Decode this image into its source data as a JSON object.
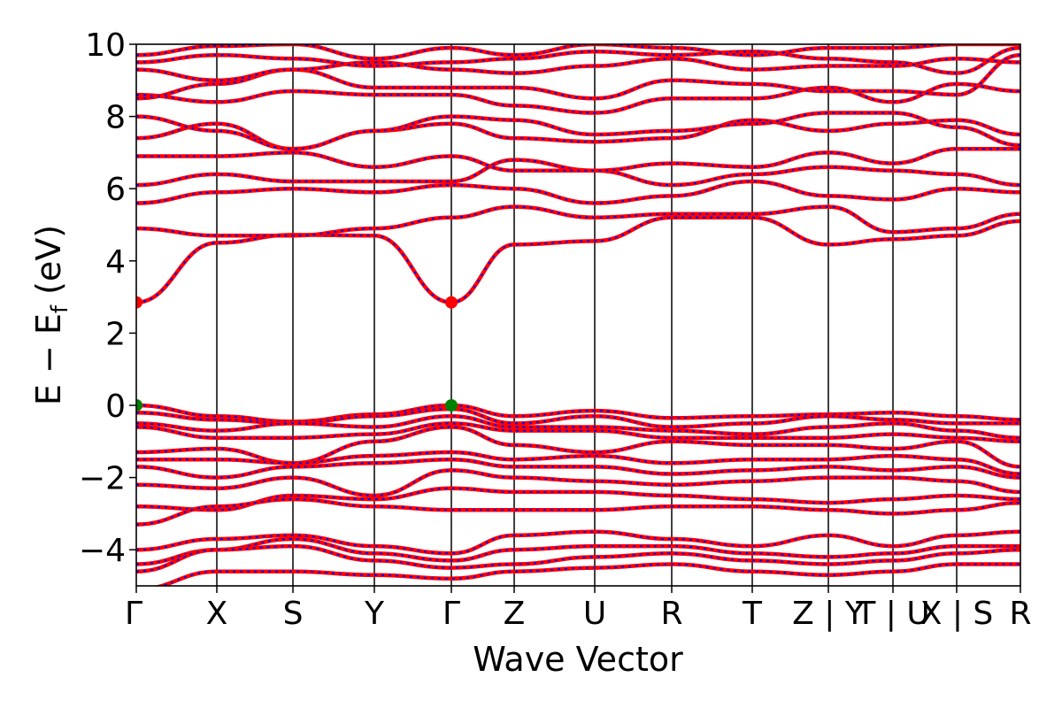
{
  "chart_data": {
    "type": "line",
    "title": "",
    "xlabel": "Wave Vector",
    "ylabel": "E − E",
    "ylabel_sub": "f",
    "ylabel_unit": " (eV)",
    "ylim": [
      -5,
      10
    ],
    "yticks": [
      {
        "value": 10,
        "label": "10"
      },
      {
        "value": 8,
        "label": "8"
      },
      {
        "value": 6,
        "label": "6"
      },
      {
        "value": 4,
        "label": "4"
      },
      {
        "value": 2,
        "label": "2"
      },
      {
        "value": 0,
        "label": "0"
      },
      {
        "value": -2,
        "label": "−2"
      },
      {
        "value": -4,
        "label": "−4"
      }
    ],
    "kpoint_labels": [
      "Γ",
      "X",
      "S",
      "Y",
      "Γ",
      "Z",
      "U",
      "R",
      "T",
      "Z | Y",
      "T | U",
      "X | S",
      "R"
    ],
    "grid": false,
    "colors": {
      "band_main": "#ff0000",
      "band_overlay": "#0000ff",
      "vbm_marker": "#008000",
      "cbm_marker": "#ff0000",
      "kpoint_line": "#000000"
    },
    "band_edges": {
      "vbm_energy": 0.0,
      "cbm_energy": 2.85,
      "vbm_kpoints": [
        "Γ",
        "Γ"
      ],
      "cbm_kpoints": [
        "Γ",
        "Γ"
      ]
    },
    "series": [
      {
        "band": "c1",
        "energies": [
          2.85,
          4.5,
          4.72,
          4.7,
          2.85,
          4.45,
          4.55,
          5.2,
          5.2,
          4.45,
          4.6,
          4.7,
          5.1
        ]
      },
      {
        "band": "c2",
        "energies": [
          4.9,
          4.7,
          4.7,
          4.9,
          5.2,
          5.5,
          5.2,
          5.3,
          5.3,
          5.5,
          4.8,
          4.9,
          5.3
        ]
      },
      {
        "band": "c3",
        "energies": [
          5.6,
          5.9,
          6.0,
          5.9,
          6.1,
          6.0,
          5.6,
          5.8,
          6.2,
          5.8,
          5.7,
          6.0,
          5.9
        ]
      },
      {
        "band": "c4",
        "energies": [
          6.1,
          6.4,
          6.2,
          6.2,
          6.2,
          6.8,
          6.5,
          6.1,
          6.4,
          6.6,
          6.5,
          6.4,
          6.1
        ]
      },
      {
        "band": "c5",
        "energies": [
          6.9,
          6.9,
          7.0,
          6.6,
          6.9,
          6.5,
          6.5,
          6.7,
          6.6,
          7.0,
          6.7,
          7.1,
          7.1
        ]
      },
      {
        "band": "c6",
        "energies": [
          7.4,
          7.8,
          7.1,
          7.6,
          7.8,
          7.4,
          7.3,
          7.4,
          7.9,
          7.6,
          7.8,
          7.9,
          7.5
        ]
      },
      {
        "band": "c7",
        "energies": [
          8.0,
          7.6,
          7.1,
          7.6,
          8.0,
          7.9,
          7.5,
          7.6,
          7.8,
          8.1,
          8.1,
          7.7,
          7.2
        ]
      },
      {
        "band": "c8",
        "energies": [
          8.6,
          8.4,
          8.7,
          8.6,
          8.6,
          8.3,
          8.1,
          8.5,
          8.5,
          8.8,
          8.4,
          8.9,
          8.7
        ]
      },
      {
        "band": "c9",
        "energies": [
          8.5,
          8.9,
          9.3,
          8.8,
          8.8,
          8.8,
          8.5,
          9.0,
          8.9,
          8.7,
          8.7,
          8.6,
          9.7
        ]
      },
      {
        "band": "c10",
        "energies": [
          9.3,
          9.0,
          9.3,
          9.5,
          9.3,
          9.2,
          9.4,
          9.6,
          9.3,
          9.4,
          9.4,
          9.6,
          9.5
        ]
      },
      {
        "band": "c11",
        "energies": [
          9.5,
          9.7,
          9.6,
          9.4,
          9.5,
          9.6,
          9.8,
          9.7,
          9.8,
          9.6,
          9.5,
          9.2,
          9.9
        ]
      },
      {
        "band": "c12",
        "energies": [
          9.7,
          9.95,
          10.0,
          9.6,
          9.9,
          9.7,
          10.0,
          9.9,
          9.7,
          9.9,
          9.9,
          10.0,
          10.0
        ]
      },
      {
        "band": "v1",
        "energies": [
          0.0,
          -0.3,
          -0.45,
          -0.25,
          0.0,
          -0.3,
          -0.15,
          -0.35,
          -0.3,
          -0.25,
          -0.2,
          -0.3,
          -0.4
        ]
      },
      {
        "band": "v2",
        "energies": [
          -0.2,
          -0.4,
          -0.5,
          -0.3,
          -0.1,
          -0.5,
          -0.3,
          -0.6,
          -0.5,
          -0.3,
          -0.4,
          -0.5,
          -0.5
        ]
      },
      {
        "band": "v3",
        "energies": [
          -0.5,
          -0.7,
          -0.5,
          -0.6,
          -0.3,
          -0.6,
          -0.6,
          -0.7,
          -0.8,
          -0.6,
          -0.5,
          -0.7,
          -0.9
        ]
      },
      {
        "band": "v4",
        "energies": [
          -0.6,
          -0.9,
          -0.9,
          -0.8,
          -0.5,
          -0.7,
          -0.7,
          -0.9,
          -0.9,
          -0.9,
          -0.8,
          -0.9,
          -1.0
        ]
      },
      {
        "band": "v5",
        "energies": [
          -1.3,
          -1.2,
          -1.6,
          -1.0,
          -0.6,
          -1.1,
          -1.3,
          -1.0,
          -1.1,
          -1.1,
          -1.2,
          -1.0,
          -1.7
        ]
      },
      {
        "band": "v6",
        "energies": [
          -1.5,
          -1.5,
          -1.6,
          -1.4,
          -1.3,
          -1.5,
          -1.4,
          -1.6,
          -1.5,
          -1.5,
          -1.4,
          -1.5,
          -1.9
        ]
      },
      {
        "band": "v7",
        "energies": [
          -1.7,
          -2.0,
          -1.7,
          -1.6,
          -1.5,
          -1.7,
          -1.7,
          -1.9,
          -1.8,
          -1.7,
          -1.8,
          -1.7,
          -2.0
        ]
      },
      {
        "band": "v8",
        "energies": [
          -2.2,
          -2.3,
          -2.0,
          -2.5,
          -1.8,
          -2.0,
          -2.1,
          -2.2,
          -2.1,
          -2.0,
          -2.0,
          -2.1,
          -2.4
        ]
      },
      {
        "band": "v9",
        "energies": [
          -2.8,
          -2.9,
          -2.5,
          -2.6,
          -2.3,
          -2.4,
          -2.4,
          -2.5,
          -2.6,
          -2.7,
          -2.6,
          -2.5,
          -2.6
        ]
      },
      {
        "band": "v10",
        "energies": [
          -3.3,
          -2.8,
          -2.6,
          -2.8,
          -2.9,
          -2.9,
          -2.9,
          -2.8,
          -2.8,
          -2.9,
          -3.0,
          -2.9,
          -2.7
        ]
      },
      {
        "band": "v11",
        "energies": [
          -4.0,
          -3.7,
          -3.6,
          -3.9,
          -4.1,
          -3.6,
          -3.5,
          -3.7,
          -3.9,
          -3.6,
          -3.9,
          -3.6,
          -3.5
        ]
      },
      {
        "band": "v12",
        "energies": [
          -4.4,
          -4.0,
          -3.7,
          -4.1,
          -4.3,
          -4.0,
          -3.9,
          -3.9,
          -4.1,
          -4.2,
          -4.1,
          -3.9,
          -3.9
        ]
      },
      {
        "band": "v13",
        "energies": [
          -4.6,
          -4.0,
          -3.9,
          -4.3,
          -4.5,
          -4.4,
          -4.2,
          -4.1,
          -4.3,
          -4.4,
          -4.3,
          -4.1,
          -4.0
        ]
      },
      {
        "band": "v14",
        "energies": [
          -5.1,
          -4.6,
          -4.6,
          -4.7,
          -4.8,
          -4.6,
          -4.5,
          -4.4,
          -4.6,
          -4.7,
          -4.6,
          -4.4,
          -4.4
        ]
      }
    ]
  }
}
